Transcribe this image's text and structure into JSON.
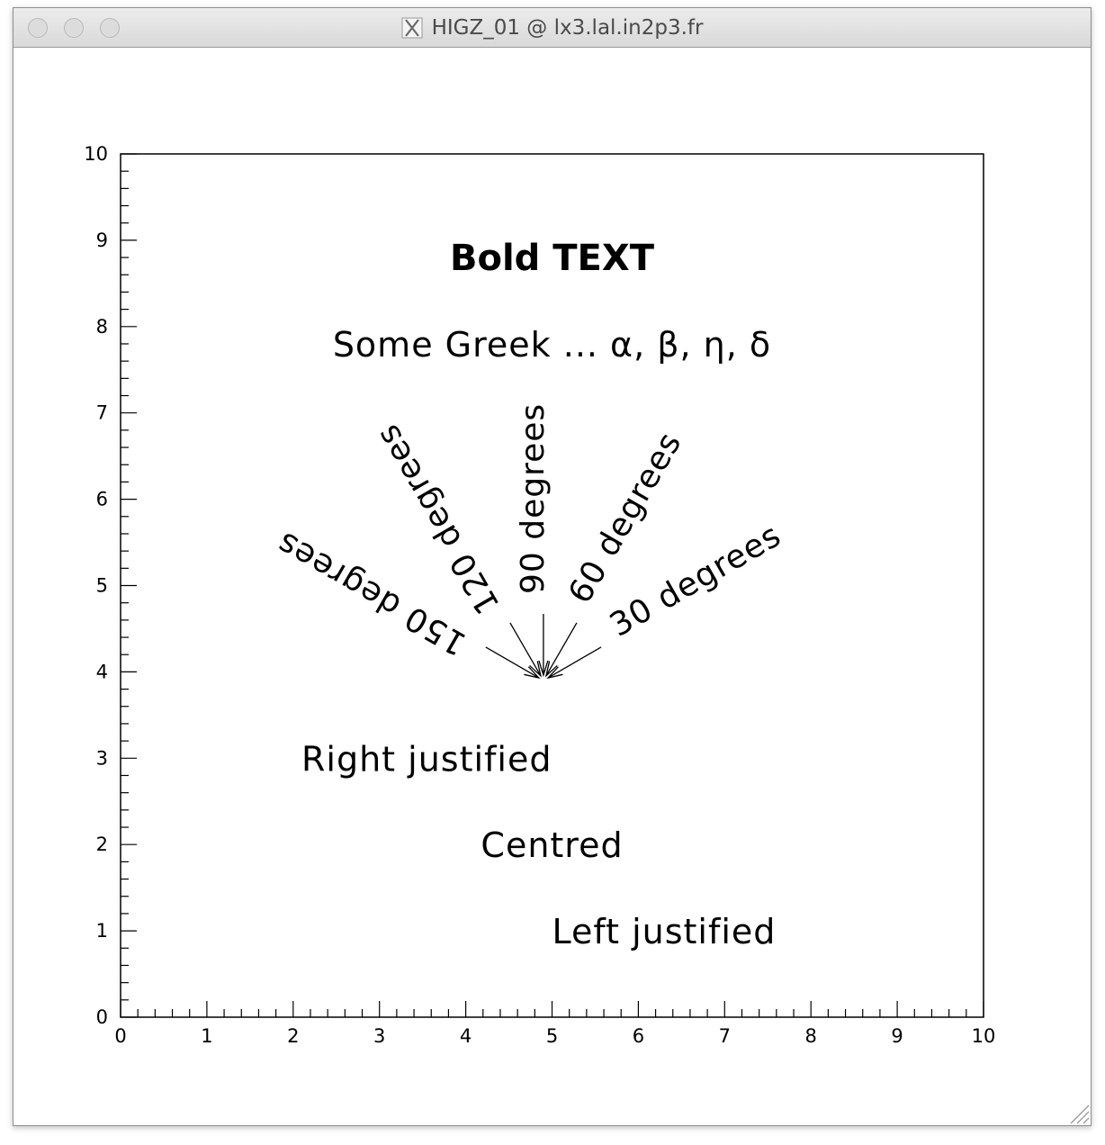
{
  "window": {
    "title": "HIGZ_01 @ lx3.lal.in2p3.fr",
    "title_icon": "x11-icon",
    "controls": [
      "close",
      "minimize",
      "zoom"
    ]
  },
  "plot": {
    "axis_range": [
      0,
      10
    ],
    "x_ticks": [
      "0",
      "1",
      "2",
      "3",
      "4",
      "5",
      "6",
      "7",
      "8",
      "9",
      "10"
    ],
    "y_ticks": [
      "0",
      "1",
      "2",
      "3",
      "4",
      "5",
      "6",
      "7",
      "8",
      "9",
      "10"
    ],
    "texts": {
      "bold": "Bold TEXT",
      "greek": "Some Greek ... α, β, η, δ",
      "right_justified": "Right justified",
      "centred": "Centred",
      "left_justified": "Left justified"
    },
    "angles": [
      {
        "label": "30 degrees",
        "angle": 30
      },
      {
        "label": "60 degrees",
        "angle": 60
      },
      {
        "label": "90 degrees",
        "angle": 90
      },
      {
        "label": "120 degrees",
        "angle": 120
      },
      {
        "label": "150 degrees",
        "angle": 150
      }
    ],
    "angle_origin": [
      4.9,
      3.9
    ],
    "colors": {
      "ink": "#000000",
      "background": "#ffffff"
    }
  }
}
